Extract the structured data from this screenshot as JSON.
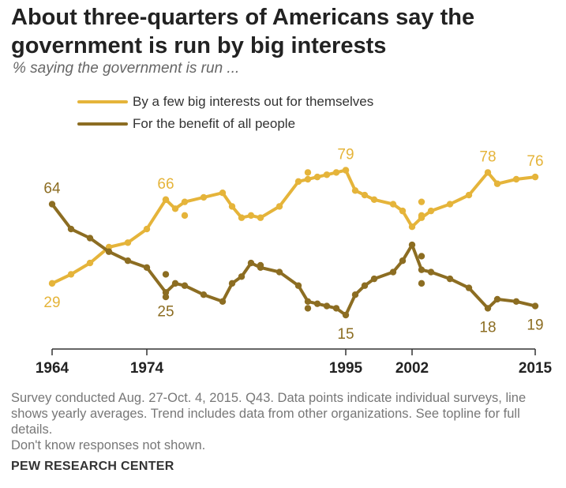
{
  "title": "About three-quarters of Americans say the government is run by big interests",
  "subtitle": "% saying the government is run ...",
  "notes": [
    "Survey conducted Aug. 27-Oct. 4, 2015. Q43. Data points indicate individual surveys, line shows yearly averages. Trend includes data from other organizations. See topline for full details.",
    "Don't know responses not shown."
  ],
  "source": "PEW RESEARCH CENTER",
  "colors": {
    "big_interests": "#e5b43a",
    "all_people": "#8c6d22",
    "axis": "#333333"
  },
  "chart_data": {
    "type": "line",
    "xlim": [
      1964,
      2015
    ],
    "ylim": [
      0,
      90
    ],
    "x_ticks": [
      1964,
      1974,
      1995,
      2002,
      2015
    ],
    "x_tick_labels": [
      "1964",
      "1974",
      "1995",
      "2002",
      "2015"
    ],
    "legend_placement": "top-left",
    "series": [
      {
        "name": "By a few big interests out for themselves",
        "color": "#e5b43a",
        "x": [
          1964,
          1966,
          1968,
          1970,
          1972,
          1974,
          1976,
          1977,
          1978,
          1980,
          1982,
          1983,
          1984,
          1985,
          1986,
          1988,
          1990,
          1991,
          1992,
          1993,
          1994,
          1995,
          1996,
          1997,
          1998,
          2000,
          2001,
          2002,
          2003,
          2004,
          2006,
          2008,
          2010,
          2011,
          2013,
          2015
        ],
        "y": [
          29,
          33,
          38,
          45,
          47,
          53,
          66,
          62,
          65,
          67,
          69,
          63,
          58,
          59,
          58,
          63,
          74,
          75,
          76,
          77,
          78,
          79,
          70,
          68,
          66,
          64,
          61,
          54,
          58,
          61,
          64,
          68,
          78,
          73,
          75,
          76
        ],
        "annotations": [
          {
            "x": 1964,
            "y": 29,
            "label": "29",
            "pos": "below"
          },
          {
            "x": 1976,
            "y": 66,
            "label": "66",
            "pos": "above"
          },
          {
            "x": 1995,
            "y": 79,
            "label": "79",
            "pos": "above"
          },
          {
            "x": 2010,
            "y": 78,
            "label": "78",
            "pos": "above"
          },
          {
            "x": 2015,
            "y": 76,
            "label": "76",
            "pos": "above"
          }
        ],
        "surveys": [
          {
            "x": 1976,
            "y": 66
          },
          {
            "x": 1978,
            "y": 59
          },
          {
            "x": 1991,
            "y": 78
          },
          {
            "x": 1995,
            "y": 79
          },
          {
            "x": 2003,
            "y": 65
          },
          {
            "x": 2003,
            "y": 59
          }
        ]
      },
      {
        "name": "For the benefit of all people",
        "color": "#8c6d22",
        "x": [
          1964,
          1966,
          1968,
          1970,
          1972,
          1974,
          1976,
          1977,
          1978,
          1980,
          1982,
          1983,
          1984,
          1985,
          1986,
          1988,
          1990,
          1991,
          1992,
          1993,
          1994,
          1995,
          1996,
          1997,
          1998,
          2000,
          2001,
          2002,
          2003,
          2004,
          2006,
          2008,
          2010,
          2011,
          2013,
          2015
        ],
        "y": [
          64,
          53,
          49,
          43,
          39,
          36,
          25,
          29,
          28,
          24,
          21,
          29,
          32,
          38,
          36,
          34,
          28,
          21,
          20,
          19,
          18,
          15,
          24,
          28,
          31,
          34,
          39,
          46,
          35,
          34,
          31,
          27,
          18,
          22,
          21,
          19
        ],
        "annotations": [
          {
            "x": 1964,
            "y": 64,
            "label": "64",
            "pos": "above"
          },
          {
            "x": 1976,
            "y": 25,
            "label": "25",
            "pos": "below"
          },
          {
            "x": 1995,
            "y": 15,
            "label": "15",
            "pos": "below"
          },
          {
            "x": 2010,
            "y": 18,
            "label": "18",
            "pos": "below"
          },
          {
            "x": 2015,
            "y": 19,
            "label": "19",
            "pos": "below"
          }
        ],
        "surveys": [
          {
            "x": 1976,
            "y": 33
          },
          {
            "x": 1976,
            "y": 23
          },
          {
            "x": 1986,
            "y": 37
          },
          {
            "x": 1991,
            "y": 18
          },
          {
            "x": 2003,
            "y": 41
          },
          {
            "x": 2003,
            "y": 29
          }
        ]
      }
    ]
  }
}
